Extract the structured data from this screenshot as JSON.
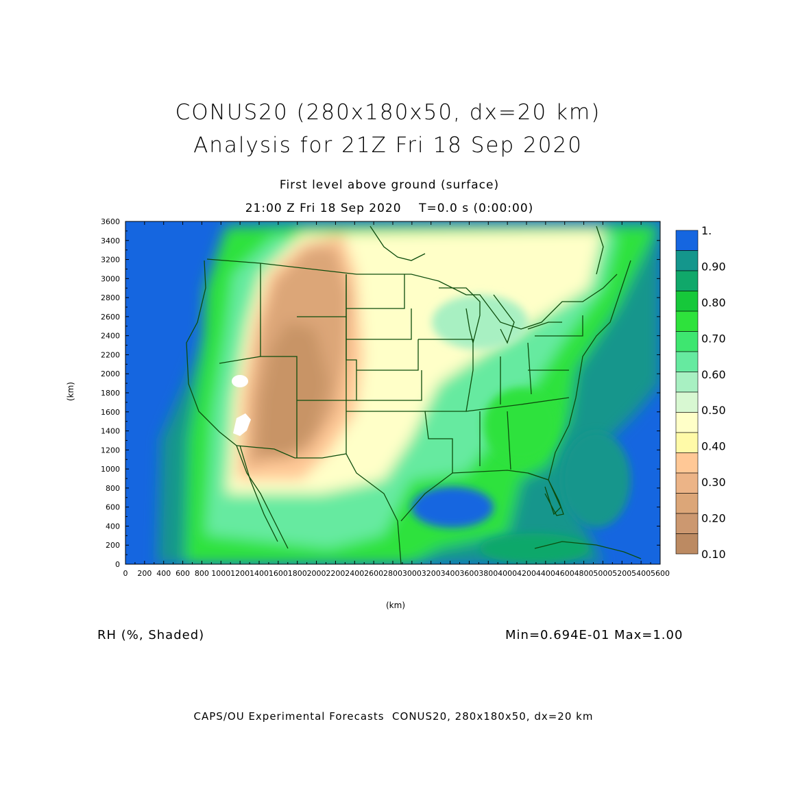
{
  "header": {
    "title_line1": "CONUS20 (280x180x50, dx=20 km)",
    "title_line2": "Analysis for 21Z Fri 18 Sep 2020",
    "subtitle_line1": "First level above ground (surface)",
    "subtitle_line2": "21:00 Z Fri 18 Sep 2020    T=0.0 s (0:00:00)"
  },
  "axes": {
    "x_unit": "(km)",
    "y_unit": "(km)",
    "x_ticks": [
      "0",
      "200",
      "400",
      "600",
      "800",
      "1000",
      "1200",
      "1400",
      "1600",
      "1800",
      "2000",
      "2200",
      "2400",
      "2600",
      "2800",
      "3000",
      "3200",
      "3400",
      "3600",
      "3800",
      "4000",
      "4200",
      "4400",
      "4600",
      "4800",
      "5000",
      "5200",
      "5400",
      "5600"
    ],
    "y_ticks": [
      "0",
      "200",
      "400",
      "600",
      "800",
      "1000",
      "1200",
      "1400",
      "1600",
      "1800",
      "2000",
      "2200",
      "2400",
      "2600",
      "2800",
      "3000",
      "3200",
      "3400",
      "3600"
    ],
    "x_range": [
      0,
      5600
    ],
    "y_range": [
      0,
      3600
    ]
  },
  "colorbar": {
    "labels": [
      "1.",
      "0.90",
      "0.80",
      "0.70",
      "0.60",
      "0.50",
      "0.40",
      "0.30",
      "0.20",
      "0.10"
    ],
    "colors": [
      "#1566e0",
      "#14968c",
      "#10a86a",
      "#16c83a",
      "#2ee23c",
      "#3ee670",
      "#66eaa0",
      "#a8f0c2",
      "#d8f8d2",
      "#ffffc8",
      "#fffaa8",
      "#ffc896",
      "#ecb487",
      "#dca678",
      "#cc9870",
      "#bc8a62"
    ]
  },
  "map_colors": {
    "ocean": "#1566e0",
    "ocean_moist": "#14968c",
    "very_moist": "#10a86a",
    "moist": "#2ee23c",
    "humid": "#66eaa0",
    "mid": "#a8f0c2",
    "semi": "#ffffc8",
    "dryish": "#ffc896",
    "dry": "#dca678",
    "arid": "#c89466",
    "borders": "#0c4c0c"
  },
  "footer": {
    "variable_label": "RH (%, Shaded)",
    "range_label": "Min=0.694E-01 Max=1.00",
    "credit": "CAPS/OU Experimental Forecasts  CONUS20, 280x180x50, dx=20 km"
  }
}
